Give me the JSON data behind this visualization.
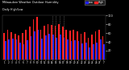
{
  "title": "Milwaukee Weather Outdoor Humidity",
  "subtitle": "Daily High/Low",
  "background_color": "#000000",
  "plot_bg_color": "#000000",
  "bar_width": 0.38,
  "high_color": "#ff2222",
  "low_color": "#2222ff",
  "dotted_indices": [
    13,
    14,
    15,
    16
  ],
  "dotted_color": "#888888",
  "ylim": [
    0,
    100
  ],
  "ytick_vals": [
    20,
    40,
    60,
    80,
    100
  ],
  "days": [
    "1",
    "2",
    "3",
    "4",
    "5",
    "6",
    "7",
    "8",
    "9",
    "10",
    "11",
    "12",
    "13",
    "14",
    "15",
    "16",
    "17",
    "18",
    "19",
    "20",
    "21",
    "22",
    "23",
    "24",
    "25",
    "26",
    "27",
    "7"
  ],
  "high_vals": [
    60,
    68,
    62,
    58,
    54,
    60,
    68,
    75,
    92,
    96,
    68,
    76,
    80,
    78,
    76,
    80,
    74,
    68,
    65,
    68,
    64,
    58,
    62,
    50,
    56,
    64,
    68,
    52
  ],
  "low_vals": [
    42,
    46,
    48,
    46,
    38,
    34,
    44,
    52,
    64,
    68,
    48,
    54,
    58,
    56,
    50,
    56,
    50,
    46,
    42,
    44,
    42,
    36,
    38,
    28,
    34,
    38,
    46,
    34
  ]
}
